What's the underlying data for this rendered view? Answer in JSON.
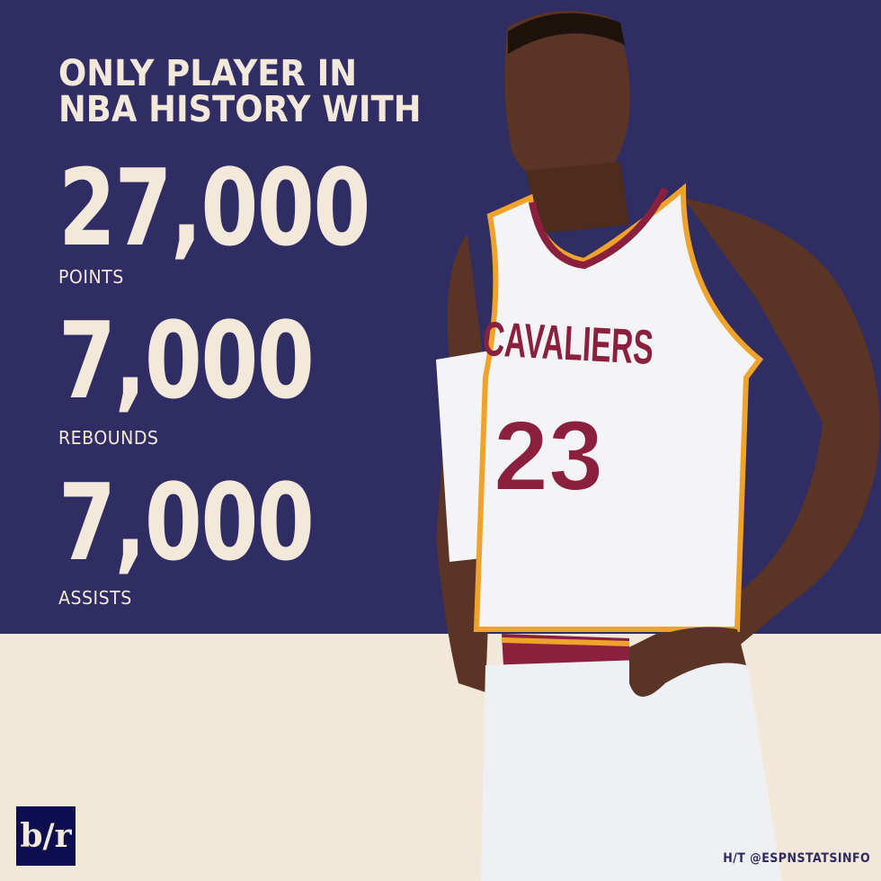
{
  "headline": {
    "line1": "ONLY PLAYER IN",
    "line2": "NBA HISTORY WITH"
  },
  "stats": [
    {
      "value": "27,000",
      "label": "POINTS"
    },
    {
      "value": "7,000",
      "label": "REBOUNDS"
    },
    {
      "value": "7,000",
      "label": "ASSISTS"
    }
  ],
  "jersey": {
    "team": "CAVALIERS",
    "number": "23"
  },
  "logo": {
    "text": "b/r"
  },
  "credit": "H/T @ESPNSTATSINFO",
  "colors": {
    "navy": "#302c64",
    "cream": "#f2e8da",
    "wine": "#8a1f3e",
    "gold": "#f0a32a"
  }
}
